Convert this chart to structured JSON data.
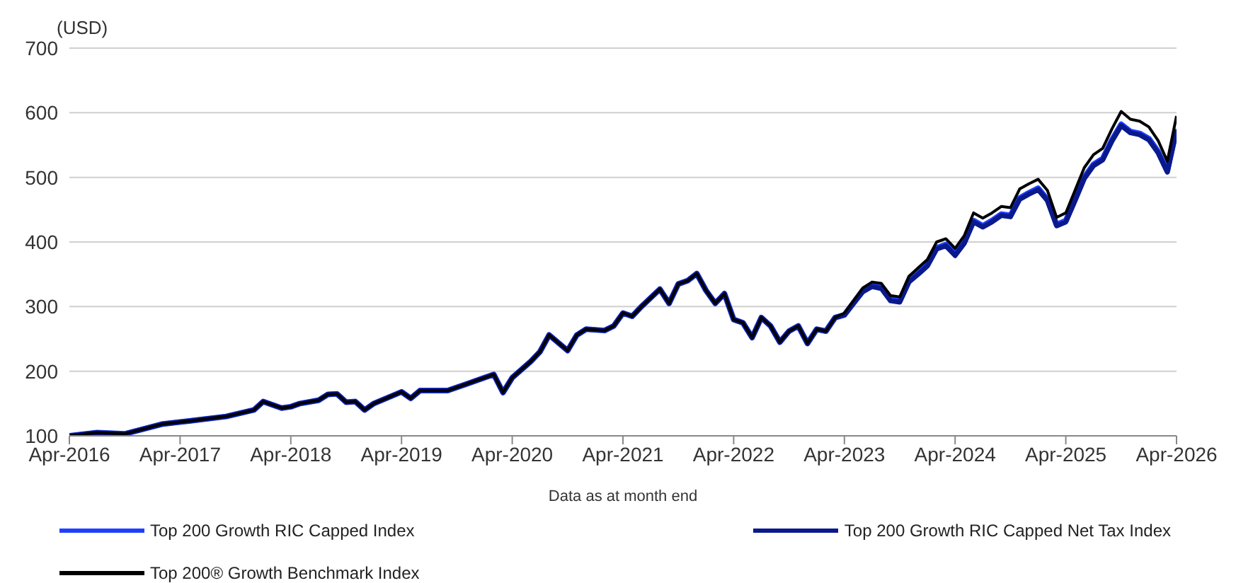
{
  "chart_data": {
    "type": "line",
    "ylabel": "(USD)",
    "xlabel": "Data as at month end",
    "x": [
      "2016-04",
      "2016-07",
      "2016-10",
      "2017-02",
      "2017-05",
      "2017-09",
      "2017-12",
      "2018-01",
      "2018-03",
      "2018-04",
      "2018-05",
      "2018-07",
      "2018-08",
      "2018-09",
      "2018-10",
      "2018-11",
      "2018-12",
      "2019-01",
      "2019-04",
      "2019-05",
      "2019-06",
      "2019-09",
      "2019-11",
      "2020-01",
      "2020-02",
      "2020-03",
      "2020-04",
      "2020-06",
      "2020-07",
      "2020-08",
      "2020-10",
      "2020-11",
      "2020-12",
      "2021-02",
      "2021-03",
      "2021-04",
      "2021-05",
      "2021-06",
      "2021-08",
      "2021-09",
      "2021-10",
      "2021-11",
      "2021-12",
      "2022-01",
      "2022-02",
      "2022-03",
      "2022-04",
      "2022-05",
      "2022-06",
      "2022-07",
      "2022-08",
      "2022-09",
      "2022-10",
      "2022-11",
      "2022-12",
      "2023-01",
      "2023-02",
      "2023-03",
      "2023-04",
      "2023-06",
      "2023-07",
      "2023-08",
      "2023-09",
      "2023-10",
      "2023-11",
      "2023-12",
      "2024-01",
      "2024-02",
      "2024-03",
      "2024-04",
      "2024-05",
      "2024-06",
      "2024-07",
      "2024-08",
      "2024-09",
      "2024-10",
      "2024-11",
      "2024-12",
      "2025-01",
      "2025-02",
      "2025-03",
      "2025-04",
      "2025-05",
      "2025-06",
      "2025-07",
      "2025-08",
      "2025-09",
      "2025-10",
      "2025-11",
      "2025-12",
      "2026-01",
      "2026-02",
      "2026-03",
      "2026-04"
    ],
    "series": [
      {
        "name": "Top 200 Growth RIC Capped Index",
        "color": "#1f3fff",
        "values": [
          100,
          105,
          103,
          118,
          123,
          130,
          140,
          153,
          143,
          145,
          150,
          155,
          164,
          165,
          152,
          153,
          140,
          150,
          168,
          158,
          170,
          170,
          180,
          190,
          195,
          167,
          190,
          215,
          230,
          256,
          232,
          256,
          265,
          263,
          270,
          290,
          285,
          300,
          327,
          305,
          335,
          340,
          351,
          325,
          305,
          320,
          280,
          275,
          252,
          283,
          270,
          245,
          262,
          270,
          243,
          265,
          262,
          283,
          287,
          325,
          333,
          330,
          311,
          309,
          340,
          352,
          365,
          391,
          396,
          381,
          400,
          433,
          425,
          433,
          443,
          441,
          468,
          476,
          483,
          466,
          427,
          433,
          466,
          500,
          520,
          529,
          558,
          582,
          571,
          568,
          560,
          540,
          510,
          575
        ]
      },
      {
        "name": "Top 200 Growth RIC Capped Net Tax Index",
        "color": "#0a1a8c",
        "values": [
          100,
          105,
          103,
          118,
          123,
          130,
          140,
          153,
          143,
          145,
          150,
          155,
          164,
          165,
          152,
          153,
          140,
          150,
          168,
          158,
          170,
          170,
          180,
          190,
          195,
          167,
          190,
          215,
          230,
          256,
          232,
          256,
          265,
          263,
          270,
          290,
          285,
          300,
          327,
          305,
          335,
          340,
          351,
          325,
          305,
          320,
          280,
          275,
          252,
          283,
          270,
          245,
          262,
          270,
          243,
          265,
          262,
          283,
          287,
          323,
          331,
          328,
          309,
          307,
          338,
          350,
          363,
          389,
          394,
          379,
          398,
          431,
          423,
          431,
          441,
          439,
          466,
          474,
          481,
          464,
          425,
          431,
          464,
          498,
          518,
          527,
          556,
          580,
          569,
          566,
          558,
          538,
          508,
          573
        ]
      },
      {
        "name": "Top 200® Growth Benchmark Index",
        "color": "#000000",
        "values": [
          100,
          105,
          103,
          118,
          123,
          130,
          140,
          153,
          143,
          145,
          150,
          155,
          164,
          165,
          152,
          153,
          140,
          150,
          168,
          158,
          170,
          170,
          180,
          190,
          195,
          167,
          190,
          215,
          230,
          256,
          232,
          256,
          265,
          263,
          270,
          290,
          285,
          300,
          327,
          305,
          335,
          340,
          351,
          325,
          305,
          320,
          280,
          275,
          252,
          283,
          270,
          245,
          262,
          270,
          243,
          265,
          262,
          283,
          290,
          329,
          338,
          336,
          317,
          315,
          347,
          360,
          373,
          400,
          405,
          390,
          410,
          445,
          437,
          445,
          455,
          453,
          482,
          490,
          497,
          480,
          438,
          445,
          480,
          515,
          535,
          545,
          575,
          602,
          590,
          587,
          578,
          557,
          525,
          595
        ]
      }
    ],
    "xlim": [
      "2016-04",
      "2026-04"
    ],
    "xticks": [
      {
        "value": "2016-04",
        "label": "Apr-2016"
      },
      {
        "value": "2017-04",
        "label": "Apr-2017"
      },
      {
        "value": "2018-04",
        "label": "Apr-2018"
      },
      {
        "value": "2019-04",
        "label": "Apr-2019"
      },
      {
        "value": "2020-04",
        "label": "Apr-2020"
      },
      {
        "value": "2021-04",
        "label": "Apr-2021"
      },
      {
        "value": "2022-04",
        "label": "Apr-2022"
      },
      {
        "value": "2023-04",
        "label": "Apr-2023"
      },
      {
        "value": "2024-04",
        "label": "Apr-2024"
      },
      {
        "value": "2025-04",
        "label": "Apr-2025"
      },
      {
        "value": "2026-04",
        "label": "Apr-2026"
      }
    ],
    "ylim": [
      100,
      700
    ],
    "yticks": [
      100,
      200,
      300,
      400,
      500,
      600,
      700
    ],
    "grid": "y",
    "legend": "bottom",
    "marker": "none",
    "line_style": "solid"
  }
}
